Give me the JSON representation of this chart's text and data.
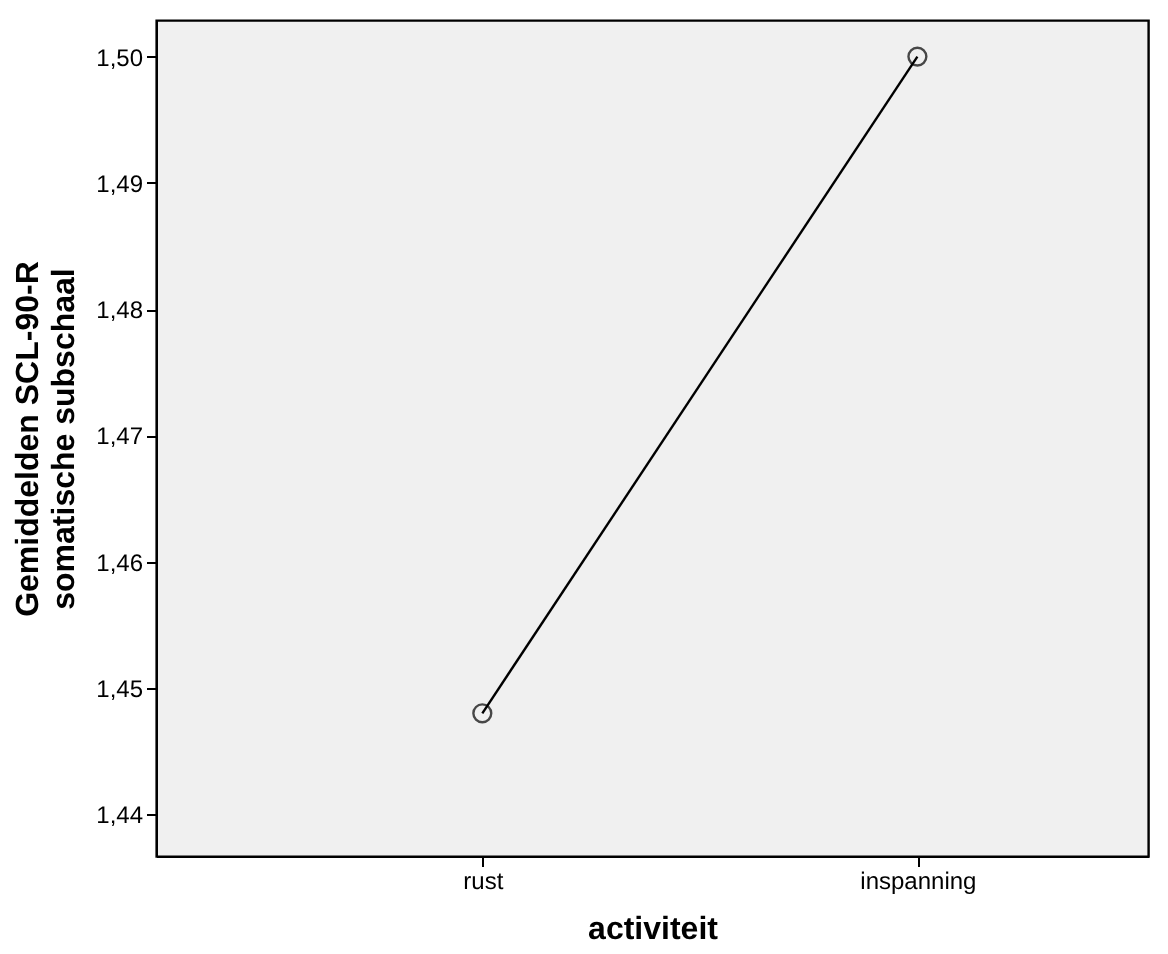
{
  "chart_data": {
    "type": "line",
    "xlabel": "activiteit",
    "ylabel": "Gemiddelden SCL-90-R\nsomatische subschaal",
    "categories": [
      "rust",
      "inspanning"
    ],
    "series": [
      {
        "color": "#000000",
        "values": [
          1.448,
          1.5
        ]
      }
    ],
    "ylim": [
      1.4367,
      1.5029
    ],
    "yticks": [
      {
        "value": 1.44,
        "label": "1,44"
      },
      {
        "value": 1.45,
        "label": "1,45"
      },
      {
        "value": 1.46,
        "label": "1,46"
      },
      {
        "value": 1.47,
        "label": "1,47"
      },
      {
        "value": 1.48,
        "label": "1,48"
      },
      {
        "value": 1.49,
        "label": "1,49"
      },
      {
        "value": 1.5,
        "label": "1,50"
      }
    ],
    "grid": false,
    "marker": "circle",
    "line_style": "solid"
  }
}
